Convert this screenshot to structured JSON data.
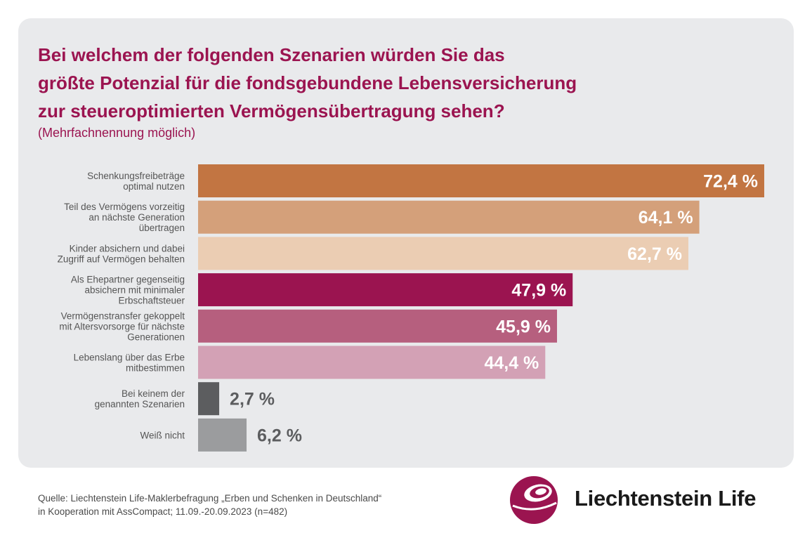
{
  "title_lines": [
    "Bei welchem der folgenden Szenarien würden Sie das",
    "größte Potenzial für die fondsgebundene Lebensversicherung",
    "zur steueroptimierten Vermögensübertragung sehen?"
  ],
  "subtitle": "(Mehrfachnennung möglich)",
  "source_lines": [
    "Quelle: Liechtenstein Life-Maklerbefragung „Erben und Schenken in Deutschland“",
    "in Kooperation mit AssCompact; 11.09.-20.09.2023 (n=482)"
  ],
  "brand": {
    "name": "Liechtenstein Life",
    "icon": "liechtenstein-life-swirl-logo-icon",
    "accent_color": "#9b1450"
  },
  "chart_data": {
    "type": "bar",
    "orientation": "horizontal",
    "title": "Bei welchem der folgenden Szenarien würden Sie das größte Potenzial für die fondsgebundene Lebensversicherung zur steueroptimierten Vermögensübertragung sehen?",
    "xlabel": "",
    "ylabel": "",
    "unit": "%",
    "xlim": [
      0,
      72.4
    ],
    "grid": false,
    "legend": "none",
    "categories": [
      [
        "Schenkungsfreibeträge",
        "optimal nutzen"
      ],
      [
        "Teil des Vermögens vorzeitig",
        "an nächste Generation",
        "übertragen"
      ],
      [
        "Kinder absichern und dabei",
        "Zugriff auf Vermögen behalten"
      ],
      [
        "Als Ehepartner gegenseitig",
        "absichern mit minimaler",
        "Erbschaftsteuer"
      ],
      [
        "Vermögenstransfer gekoppelt",
        "mit Altersvorsorge für nächste",
        "Generationen"
      ],
      [
        "Lebenslang über das Erbe",
        "mitbestimmen"
      ],
      [
        "Bei keinem der",
        "genannten Szenarien"
      ],
      [
        "Weiß nicht"
      ]
    ],
    "values": [
      72.4,
      64.1,
      62.7,
      47.9,
      45.9,
      44.4,
      2.7,
      6.2
    ],
    "value_labels": [
      "72,4 %",
      "64,1 %",
      "62,7 %",
      "47,9 %",
      "45,9 %",
      "44,4 %",
      "2,7 %",
      "6,2 %"
    ],
    "colors": [
      "#c27542",
      "#d4a07a",
      "#ebcdb3",
      "#9b1450",
      "#b65f7e",
      "#d3a1b5",
      "#5c5d5f",
      "#9b9c9e"
    ],
    "label_colors": [
      "#ffffff",
      "#ffffff",
      "#ffffff",
      "#ffffff",
      "#ffffff",
      "#ffffff",
      "#5c5d5f",
      "#5c5d5f"
    ]
  }
}
